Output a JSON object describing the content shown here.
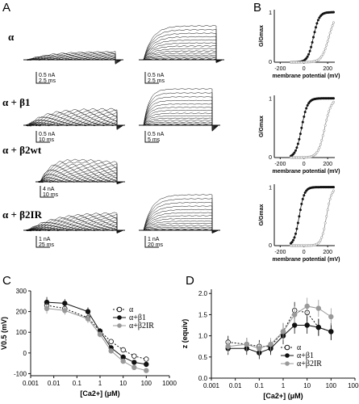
{
  "panels": {
    "A": "A",
    "B": "B",
    "C": "C",
    "D": "D"
  },
  "conditions": [
    {
      "label": "α"
    },
    {
      "label": "α + β1"
    },
    {
      "label": "α + β2wt"
    },
    {
      "label": "α + β2IR"
    }
  ],
  "scale_bars": [
    {
      "left_current": "0.5 nA",
      "left_time": "2.5 ms",
      "right_current": "0.5 nA",
      "right_time": "2.5 ms"
    },
    {
      "left_current": "0.5 nA",
      "left_time": "10 ms",
      "right_current": "0.5 nA",
      "right_time": "5 ms"
    },
    {
      "left_current": "4 nA",
      "left_time": "10 ms"
    },
    {
      "left_current": "1 nA",
      "left_time": "25 ms",
      "right_current": "1 nA",
      "right_time": "20 ms"
    }
  ],
  "colors": {
    "black": "#111111",
    "gray": "#999999",
    "open": "#ffffff"
  },
  "chart_data": [
    {
      "panel": "B",
      "type": "scatter",
      "ylabel": "G/Gmax",
      "xlabel": "membrane potential (mV)",
      "x_ticks": [
        "-200",
        "0",
        "200"
      ],
      "y_ticks": [
        "0",
        "1"
      ],
      "xlim": [
        -250,
        260
      ],
      "ylim": [
        0,
        1.05
      ],
      "rows": [
        {
          "condition": "α",
          "curves": [
            {
              "v_half": 80,
              "k": 24,
              "filled": true
            },
            {
              "v_half": 210,
              "k": 30,
              "filled": false
            }
          ]
        },
        {
          "condition": "α + β1",
          "curves": [
            {
              "v_half": -20,
              "k": 25,
              "filled": true
            },
            {
              "v_half": 175,
              "k": 28,
              "filled": false
            }
          ]
        },
        {
          "condition": "α + β2IR",
          "curves": [
            {
              "v_half": -40,
              "k": 22,
              "filled": true
            },
            {
              "v_half": 190,
              "k": 22,
              "filled": false
            }
          ]
        }
      ]
    },
    {
      "panel": "C",
      "type": "scatter",
      "xlabel": "[Ca2+] (μM)",
      "ylabel": "V0.5 (mV)",
      "x_tick_labels": [
        "0.001",
        "0.01",
        "0.1",
        "1",
        "10",
        "100",
        "1000"
      ],
      "y_tick_labels": [
        "-100",
        "0",
        "100",
        "200",
        "300"
      ],
      "xscale": "log",
      "xlim": [
        0.001,
        1000
      ],
      "ylim": [
        -110,
        300
      ],
      "x": [
        0.005,
        0.03,
        0.3,
        1,
        3,
        10,
        30,
        100
      ],
      "series": [
        {
          "name": "α",
          "marker": "open",
          "values": [
            230,
            215,
            170,
            105,
            55,
            15,
            -15,
            -30
          ],
          "errors": [
            25,
            20,
            20,
            15,
            12,
            12,
            10,
            10
          ]
        },
        {
          "name": "α+β1",
          "marker": "filled",
          "values": [
            245,
            240,
            200,
            105,
            25,
            -20,
            -45,
            -55
          ],
          "errors": [
            25,
            20,
            20,
            15,
            12,
            12,
            10,
            10
          ]
        },
        {
          "name": "α+β2IR",
          "marker": "gray",
          "values": [
            215,
            205,
            165,
            90,
            10,
            -40,
            -70,
            -85
          ],
          "errors": [
            25,
            20,
            20,
            15,
            12,
            12,
            10,
            10
          ]
        }
      ]
    },
    {
      "panel": "D",
      "type": "scatter",
      "xlabel": "[Ca2+] (μM)",
      "ylabel": "z (equiv)",
      "x_tick_labels": [
        "0.001",
        "0.01",
        "0.1",
        "1",
        "10",
        "100",
        "1000"
      ],
      "y_tick_labels": [
        "0.0",
        "0.5",
        "1.0",
        "1.5",
        "2.0"
      ],
      "xscale": "log",
      "xlim": [
        0.001,
        1000
      ],
      "ylim": [
        0,
        2.1
      ],
      "x": [
        0.005,
        0.03,
        0.1,
        0.3,
        1,
        3,
        10,
        30,
        100
      ],
      "series": [
        {
          "name": "α",
          "marker": "open",
          "values": [
            0.85,
            0.8,
            0.75,
            0.75,
            1.1,
            1.6,
            1.55,
            1.2,
            1.1
          ],
          "errors": [
            0.15,
            0.15,
            0.15,
            0.15,
            0.2,
            0.2,
            0.2,
            0.2,
            0.2
          ]
        },
        {
          "name": "α+β1",
          "marker": "filled",
          "values": [
            0.7,
            0.7,
            0.6,
            0.7,
            1.0,
            1.25,
            1.25,
            1.2,
            1.1
          ],
          "errors": [
            0.15,
            0.15,
            0.15,
            0.15,
            0.2,
            0.2,
            0.2,
            0.2,
            0.2
          ]
        },
        {
          "name": "α+β2IR",
          "marker": "gray",
          "values": [
            0.75,
            0.8,
            0.7,
            0.8,
            1.1,
            1.5,
            1.7,
            1.65,
            1.45
          ],
          "errors": [
            0.15,
            0.15,
            0.15,
            0.15,
            0.2,
            0.2,
            0.2,
            0.2,
            0.2
          ]
        }
      ]
    }
  ]
}
